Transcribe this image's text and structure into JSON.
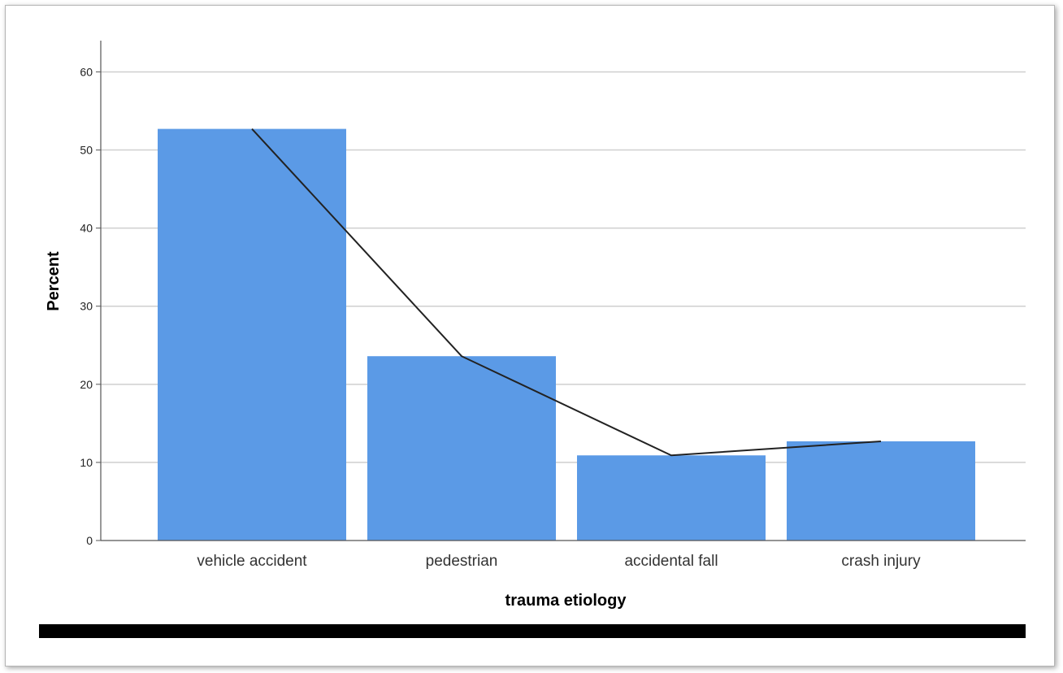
{
  "chart_data": {
    "type": "bar",
    "categories": [
      "vehicle accident",
      "pedestrian",
      "accidental fall",
      "crash injury"
    ],
    "values": [
      52.7,
      23.6,
      10.9,
      12.7
    ],
    "overlay_line": true,
    "xlabel": "trauma etiology",
    "ylabel": "Percent",
    "ylim": [
      0,
      64
    ],
    "yticks": [
      0,
      10,
      20,
      30,
      40,
      50,
      60
    ],
    "grid": "horizontal",
    "colors": {
      "bar": "#5b9ae6",
      "line": "#222222",
      "grid": "#cfcfcf",
      "axis": "#555555",
      "footer_bar": "#000000"
    }
  }
}
